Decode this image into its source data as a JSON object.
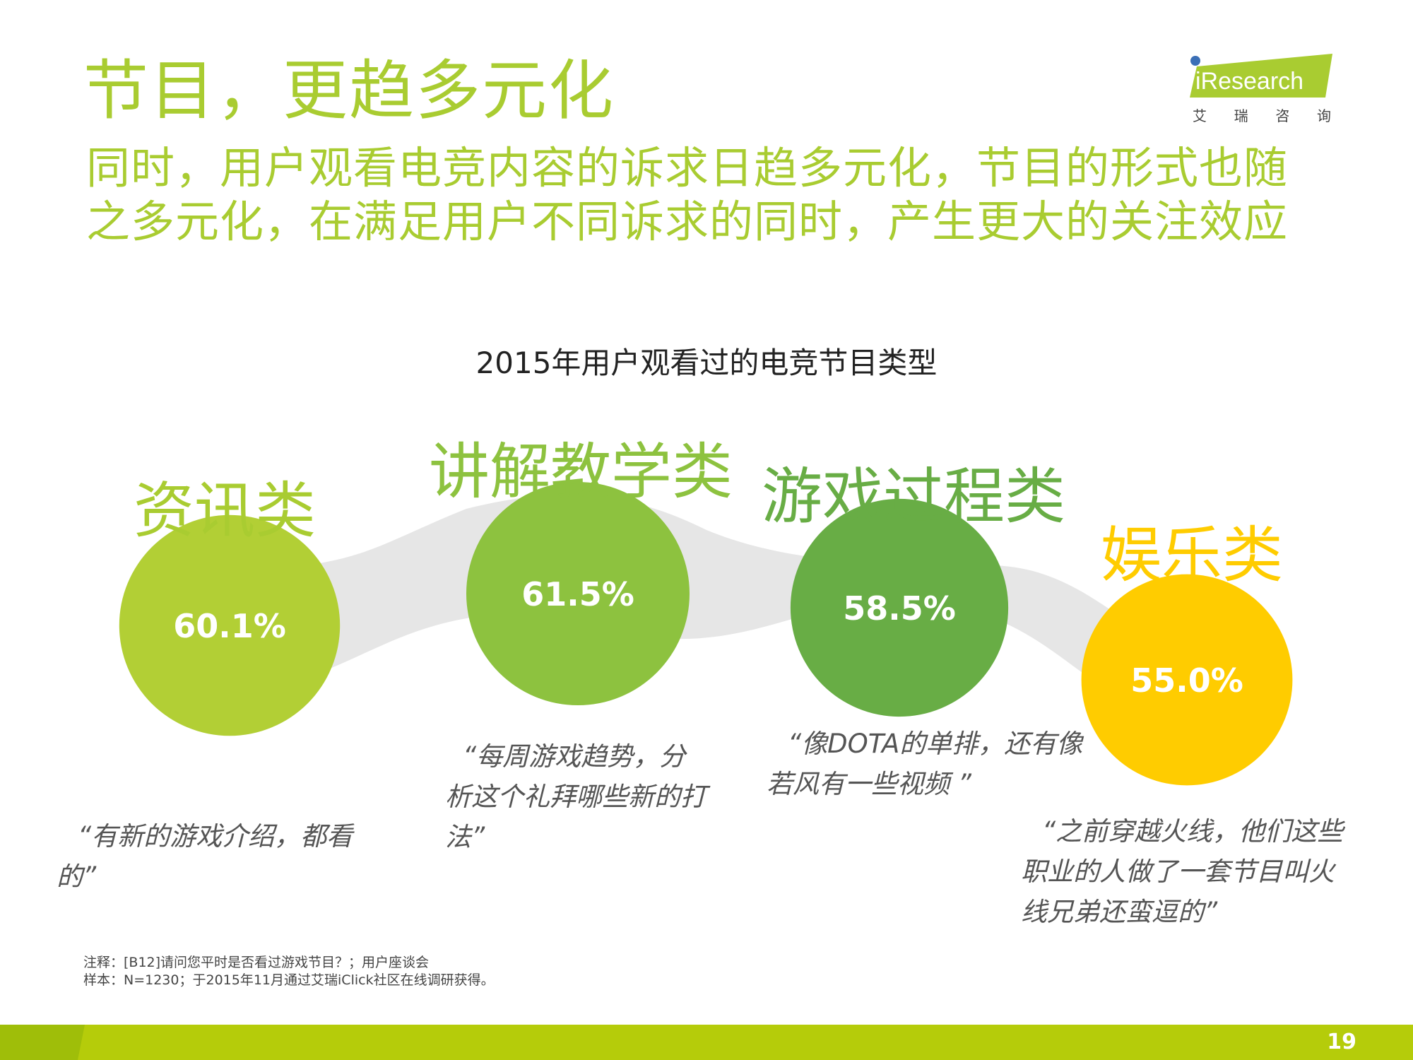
{
  "header": {
    "title": "节目，更趋多元化",
    "subtitle": "同时，用户观看电竞内容的诉求日趋多元化，节目的形式也随之多元化，在满足用户不同诉求的同时，产生更大的关注效应"
  },
  "logo": {
    "name": "iResearch",
    "chars": [
      "艾",
      "瑞",
      "咨",
      "询"
    ]
  },
  "colors": {
    "title_green": "#a9cc31",
    "band_gray": "#e6e6e6",
    "footer_green": "#b5cc0a"
  },
  "chart_data": {
    "type": "bubble",
    "title": "2015年用户观看过的电竞节目类型",
    "categories": [
      "资讯类",
      "讲解教学类",
      "游戏过程类",
      "娱乐类"
    ],
    "values": [
      60.1,
      61.5,
      58.5,
      55.0
    ],
    "value_labels": [
      "60.1%",
      "61.5%",
      "58.5%",
      "55.0%"
    ],
    "colors": [
      "#b2cf35",
      "#8dc23f",
      "#68ad45",
      "#ffcc00"
    ],
    "quotes": [
      "“有新的游戏介绍，都看的”",
      "“每周游戏趋势，分析这个礼拜哪些新的打法”",
      "“像DOTA的单排，还有像若风有一些视频 ”",
      "“之前穿越火线，他们这些职业的人做了一套节目叫火线兄弟还蛮逗的”"
    ]
  },
  "notes": {
    "note": "注释：[B12]请问您平时是否看过游戏节目？；用户座谈会",
    "sample": "样本：N=1230；于2015年11月通过艾瑞iClick社区在线调研获得。"
  },
  "footer": {
    "page_number": "19"
  }
}
